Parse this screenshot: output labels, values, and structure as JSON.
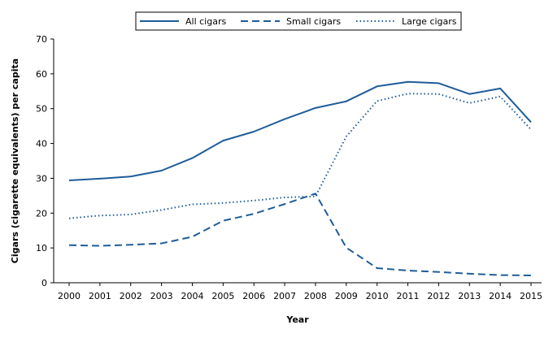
{
  "chart_data": {
    "type": "line",
    "title": "",
    "xlabel": "Year",
    "ylabel": "Cigars (cigarette equivalents) per capita",
    "x": [
      2000,
      2001,
      2002,
      2003,
      2004,
      2005,
      2006,
      2007,
      2008,
      2009,
      2010,
      2011,
      2012,
      2013,
      2014,
      2015
    ],
    "xlim": [
      2000,
      2015
    ],
    "ylim": [
      0,
      70
    ],
    "yticks": [
      0,
      10,
      20,
      30,
      40,
      50,
      60,
      70
    ],
    "grid": false,
    "legend_position": "top-center",
    "colors": {
      "line": "#1f5c99",
      "axis": "#000000"
    },
    "series": [
      {
        "name": "All cigars",
        "style": "solid",
        "values": [
          29.4,
          29.9,
          30.5,
          32.2,
          35.8,
          40.8,
          43.4,
          47.0,
          50.2,
          52.1,
          56.4,
          57.7,
          57.3,
          54.2,
          55.8,
          46.1
        ]
      },
      {
        "name": "Small cigars",
        "style": "dashed",
        "values": [
          10.8,
          10.6,
          10.9,
          11.3,
          13.2,
          17.8,
          19.8,
          22.6,
          25.6,
          10.1,
          4.2,
          3.5,
          3.1,
          2.6,
          2.2,
          2.1
        ]
      },
      {
        "name": "Large cigars",
        "style": "dotted",
        "values": [
          18.5,
          19.3,
          19.6,
          20.9,
          22.5,
          22.9,
          23.6,
          24.5,
          24.8,
          42.0,
          52.2,
          54.3,
          54.2,
          51.6,
          53.5,
          44.0
        ]
      }
    ]
  }
}
